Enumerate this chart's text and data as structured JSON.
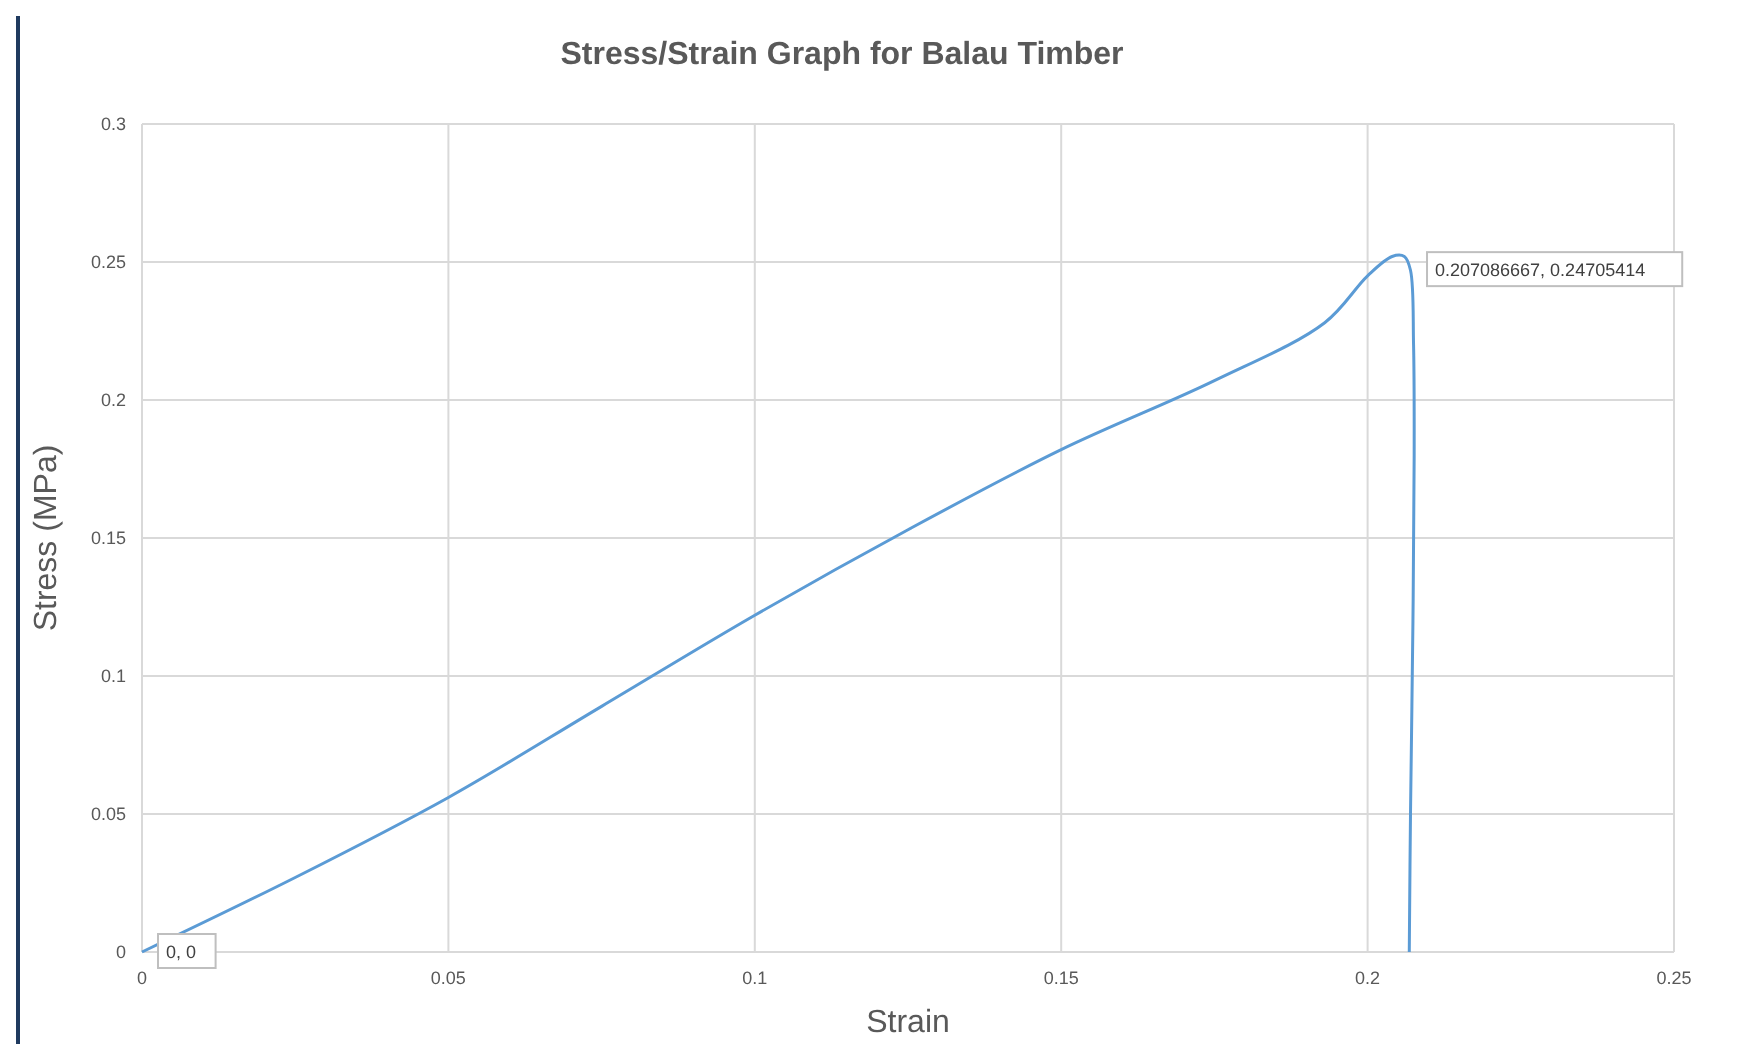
{
  "chart_data": {
    "type": "line",
    "title": "Stress/Strain Graph for Balau Timber",
    "xlabel": "Strain",
    "ylabel": "Stress (MPa)",
    "series": [
      {
        "color": "#5b9bd5",
        "x": [
          0,
          0.025,
          0.05,
          0.075,
          0.1,
          0.125,
          0.15,
          0.175,
          0.193,
          0.2,
          0.204,
          0.206,
          0.207,
          0.2075,
          0.2076,
          0.2074,
          0.207,
          0.2068
        ],
        "values": [
          0,
          0.027,
          0.056,
          0.089,
          0.122,
          0.153,
          0.182,
          0.207,
          0.228,
          0.245,
          0.252,
          0.252,
          0.247,
          0.22,
          0.18,
          0.12,
          0.05,
          0
        ]
      }
    ],
    "xlim": [
      0,
      0.25
    ],
    "xticks": [
      0,
      0.05,
      0.1,
      0.15,
      0.2,
      0.25
    ],
    "ylim": [
      0,
      0.3
    ],
    "yticks": [
      0,
      0.05,
      0.1,
      0.15,
      0.2,
      0.25,
      0.3
    ],
    "grid": true,
    "marker": "none",
    "line_style": "solid",
    "annotations": [
      {
        "text": "0, 0",
        "x": 0,
        "y": 0
      },
      {
        "text": "0.207086667, 0.24705414",
        "x": 0.207086667,
        "y": 0.24705414
      }
    ]
  }
}
